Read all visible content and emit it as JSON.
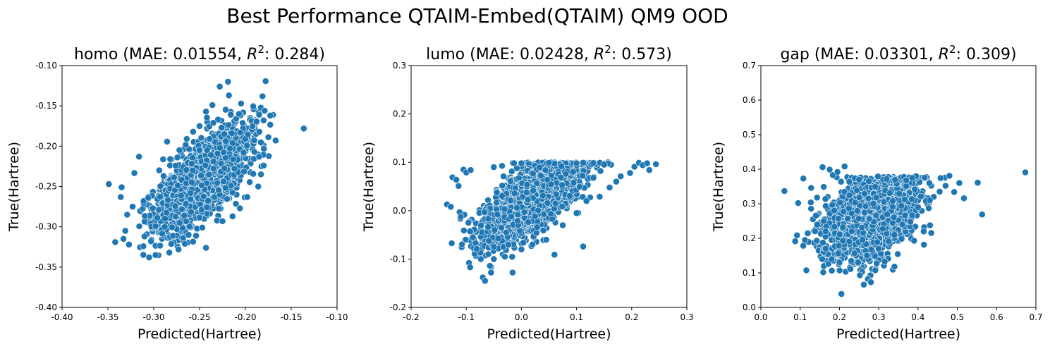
{
  "suptitle": "Best Performance QTAIM-Embed(QTAIM) QM9 OOD",
  "style": {
    "point_color": "#1f77b4",
    "point_edge": "#ffffff"
  },
  "chart_data": [
    {
      "type": "scatter",
      "title_prefix": "homo (MAE: 0.01554, ",
      "r2": "0.284",
      "xlabel": "Predicted(Hartree)",
      "ylabel": "True(Hartree)",
      "xlim": [
        -0.4,
        -0.1
      ],
      "ylim": [
        -0.4,
        -0.1
      ],
      "xticks": [
        "-0.40",
        "-0.35",
        "-0.30",
        "-0.25",
        "-0.20",
        "-0.15",
        "-0.10"
      ],
      "yticks": [
        "-0.40",
        "-0.35",
        "-0.30",
        "-0.25",
        "-0.20",
        "-0.15",
        "-0.10"
      ],
      "grid": false,
      "points": [
        [
          -0.349,
          -0.247
        ],
        [
          -0.335,
          -0.251
        ],
        [
          -0.342,
          -0.319
        ],
        [
          -0.333,
          -0.315
        ],
        [
          -0.331,
          -0.305
        ],
        [
          -0.327,
          -0.322
        ],
        [
          -0.329,
          -0.285
        ],
        [
          -0.336,
          -0.263
        ],
        [
          -0.316,
          -0.213
        ],
        [
          -0.305,
          -0.338
        ],
        [
          -0.298,
          -0.335
        ],
        [
          -0.283,
          -0.332
        ],
        [
          -0.273,
          -0.328
        ],
        [
          -0.243,
          -0.326
        ],
        [
          -0.279,
          -0.311
        ],
        [
          -0.303,
          -0.318
        ],
        [
          -0.323,
          -0.275
        ],
        [
          -0.311,
          -0.268
        ],
        [
          -0.264,
          -0.191
        ],
        [
          -0.272,
          -0.205
        ],
        [
          -0.257,
          -0.182
        ],
        [
          -0.25,
          -0.175
        ],
        [
          -0.243,
          -0.157
        ],
        [
          -0.236,
          -0.149
        ],
        [
          -0.228,
          -0.126
        ],
        [
          -0.219,
          -0.12
        ],
        [
          -0.218,
          -0.137
        ],
        [
          -0.216,
          -0.161
        ],
        [
          -0.21,
          -0.166
        ],
        [
          -0.207,
          -0.16
        ],
        [
          -0.179,
          -0.156
        ],
        [
          -0.173,
          -0.162
        ],
        [
          -0.185,
          -0.161
        ],
        [
          -0.167,
          -0.193
        ],
        [
          -0.185,
          -0.213
        ],
        [
          -0.18,
          -0.224
        ],
        [
          -0.183,
          -0.235
        ],
        [
          -0.186,
          -0.25
        ],
        [
          -0.198,
          -0.263
        ],
        [
          -0.206,
          -0.277
        ],
        [
          -0.214,
          -0.287
        ],
        [
          -0.225,
          -0.293
        ],
        [
          -0.247,
          -0.301
        ],
        [
          -0.262,
          -0.31
        ],
        [
          -0.266,
          -0.321
        ],
        [
          -0.288,
          -0.3
        ],
        [
          -0.296,
          -0.289
        ],
        [
          -0.301,
          -0.277
        ],
        [
          -0.306,
          -0.264
        ],
        [
          -0.294,
          -0.23
        ],
        [
          -0.282,
          -0.216
        ],
        [
          -0.276,
          -0.224
        ],
        [
          -0.235,
          -0.171
        ],
        [
          -0.226,
          -0.177
        ],
        [
          -0.239,
          -0.191
        ],
        [
          -0.223,
          -0.185
        ],
        [
          -0.25,
          -0.205
        ]
      ],
      "cloud": {
        "n": 2200,
        "mx": -0.247,
        "my": -0.241,
        "sx": 0.024,
        "sy": 0.03,
        "corr": 0.7,
        "seed": 11
      }
    },
    {
      "type": "scatter",
      "title_prefix": "lumo (MAE: 0.02428, ",
      "r2": "0.573",
      "xlabel": "Predicted(Hartree)",
      "ylabel": "True(Hartree)",
      "xlim": [
        -0.2,
        0.3
      ],
      "ylim": [
        -0.2,
        0.3
      ],
      "xticks": [
        "-0.2",
        "-0.1",
        "0.0",
        "0.1",
        "0.2",
        "0.3"
      ],
      "yticks": [
        "-0.2",
        "-0.1",
        "0.0",
        "0.1",
        "0.2",
        "0.3"
      ],
      "grid": false,
      "points": [
        [
          -0.135,
          0.013
        ],
        [
          -0.128,
          0.008
        ],
        [
          -0.125,
          0.069
        ],
        [
          -0.118,
          0.064
        ],
        [
          -0.105,
          0.085
        ],
        [
          -0.1,
          0.079
        ],
        [
          -0.092,
          0.084
        ],
        [
          -0.114,
          0.051
        ],
        [
          -0.112,
          -0.003
        ],
        [
          -0.11,
          -0.013
        ],
        [
          -0.096,
          -0.025
        ],
        [
          -0.093,
          -0.043
        ],
        [
          -0.088,
          -0.055
        ],
        [
          -0.083,
          -0.067
        ],
        [
          -0.081,
          -0.079
        ],
        [
          -0.095,
          -0.108
        ],
        [
          -0.093,
          -0.117
        ],
        [
          -0.07,
          -0.138
        ],
        [
          -0.066,
          -0.145
        ],
        [
          -0.055,
          -0.128
        ],
        [
          -0.016,
          -0.128
        ],
        [
          0.06,
          -0.091
        ],
        [
          0.112,
          -0.074
        ],
        [
          0.205,
          0.091
        ],
        [
          0.213,
          0.099
        ],
        [
          0.22,
          0.094
        ],
        [
          0.228,
          0.098
        ],
        [
          0.232,
          0.084
        ],
        [
          0.244,
          0.096
        ],
        [
          0.197,
          0.078
        ],
        [
          0.18,
          0.071
        ],
        [
          0.172,
          0.06
        ],
        [
          0.16,
          0.048
        ],
        [
          0.142,
          0.029
        ],
        [
          0.118,
          0.02
        ],
        [
          0.1,
          -0.005
        ],
        [
          0.075,
          -0.03
        ],
        [
          0.045,
          -0.06
        ],
        [
          0.02,
          -0.07
        ],
        [
          0.0,
          -0.08
        ],
        [
          -0.03,
          -0.095
        ],
        [
          -0.05,
          -0.1
        ],
        [
          -0.06,
          -0.09
        ],
        [
          -0.05,
          0.09
        ],
        [
          0.0,
          0.098
        ],
        [
          0.05,
          0.099
        ],
        [
          0.1,
          0.098
        ],
        [
          0.15,
          0.095
        ]
      ],
      "cloud": {
        "n": 2200,
        "mx": 0.021,
        "my": 0.026,
        "sx": 0.042,
        "sy": 0.043,
        "corr": 0.68,
        "seed": 23,
        "ycap": 0.1
      }
    },
    {
      "type": "scatter",
      "title_prefix": "gap (MAE: 0.03301, ",
      "r2": "0.309",
      "xlabel": "Predicted(Hartree)",
      "ylabel": "True(Hartree)",
      "xlim": [
        0.0,
        0.7
      ],
      "ylim": [
        0.0,
        0.7
      ],
      "xticks": [
        "0.0",
        "0.1",
        "0.2",
        "0.3",
        "0.4",
        "0.5",
        "0.6",
        "0.7"
      ],
      "yticks": [
        "0.0",
        "0.1",
        "0.2",
        "0.3",
        "0.4",
        "0.5",
        "0.6",
        "0.7"
      ],
      "grid": false,
      "points": [
        [
          0.06,
          0.337
        ],
        [
          0.108,
          0.373
        ],
        [
          0.095,
          0.302
        ],
        [
          0.112,
          0.195
        ],
        [
          0.127,
          0.304
        ],
        [
          0.128,
          0.346
        ],
        [
          0.143,
          0.318
        ],
        [
          0.157,
          0.406
        ],
        [
          0.16,
          0.349
        ],
        [
          0.175,
          0.399
        ],
        [
          0.183,
          0.383
        ],
        [
          0.195,
          0.392
        ],
        [
          0.213,
          0.408
        ],
        [
          0.205,
          0.039
        ],
        [
          0.262,
          0.066
        ],
        [
          0.28,
          0.073
        ],
        [
          0.34,
          0.118
        ],
        [
          0.228,
          0.111
        ],
        [
          0.252,
          0.093
        ],
        [
          0.172,
          0.126
        ],
        [
          0.39,
          0.193
        ],
        [
          0.42,
          0.308
        ],
        [
          0.44,
          0.32
        ],
        [
          0.455,
          0.335
        ],
        [
          0.47,
          0.352
        ],
        [
          0.48,
          0.381
        ],
        [
          0.492,
          0.334
        ],
        [
          0.505,
          0.36
        ],
        [
          0.517,
          0.316
        ],
        [
          0.552,
          0.361
        ],
        [
          0.563,
          0.269
        ],
        [
          0.673,
          0.391
        ],
        [
          0.395,
          0.38
        ],
        [
          0.385,
          0.375
        ],
        [
          0.37,
          0.368
        ],
        [
          0.298,
          0.379
        ],
        [
          0.32,
          0.372
        ],
        [
          0.16,
          0.25
        ],
        [
          0.165,
          0.22
        ],
        [
          0.165,
          0.17
        ],
        [
          0.18,
          0.14
        ],
        [
          0.2,
          0.13
        ],
        [
          0.23,
          0.135
        ],
        [
          0.27,
          0.15
        ],
        [
          0.3,
          0.17
        ],
        [
          0.34,
          0.21
        ],
        [
          0.36,
          0.24
        ],
        [
          0.4,
          0.29
        ],
        [
          0.43,
          0.31
        ],
        [
          0.25,
          0.37
        ],
        [
          0.275,
          0.365
        ]
      ],
      "cloud": {
        "n": 2000,
        "mx": 0.283,
        "my": 0.265,
        "sx": 0.055,
        "sy": 0.06,
        "corr": 0.4,
        "seed": 37,
        "ycap": 0.378
      }
    }
  ]
}
